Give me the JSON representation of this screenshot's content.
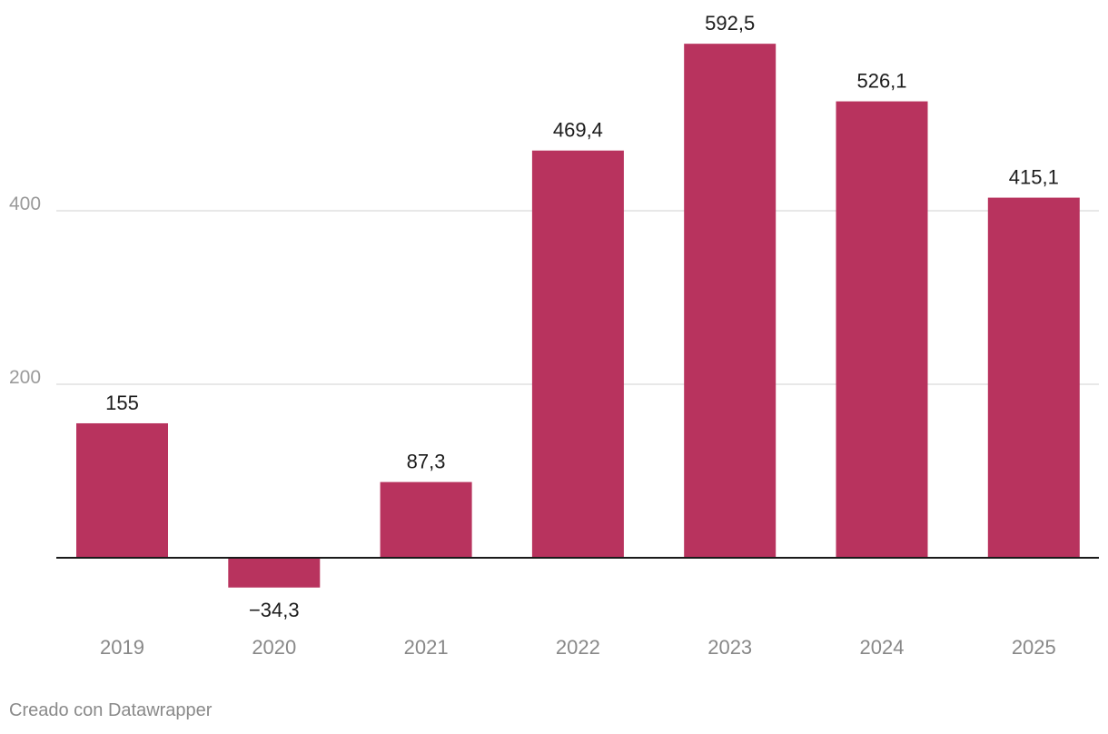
{
  "chart_data": {
    "type": "bar",
    "categories": [
      "2019",
      "2020",
      "2021",
      "2022",
      "2023",
      "2024",
      "2025"
    ],
    "values": [
      155,
      -34.3,
      87.3,
      469.4,
      592.5,
      526.1,
      415.1
    ],
    "value_labels": [
      "155",
      "−34,3",
      "87,3",
      "469,4",
      "592,5",
      "526,1",
      "415,1"
    ],
    "yticks": [
      200,
      400
    ],
    "ytick_labels": [
      "200",
      "400"
    ],
    "ylim": [
      -100,
      600
    ],
    "bar_color": "#b8335e",
    "grid": true,
    "title": "",
    "xlabel": "",
    "ylabel": ""
  },
  "footer": {
    "credit": "Creado con Datawrapper"
  }
}
